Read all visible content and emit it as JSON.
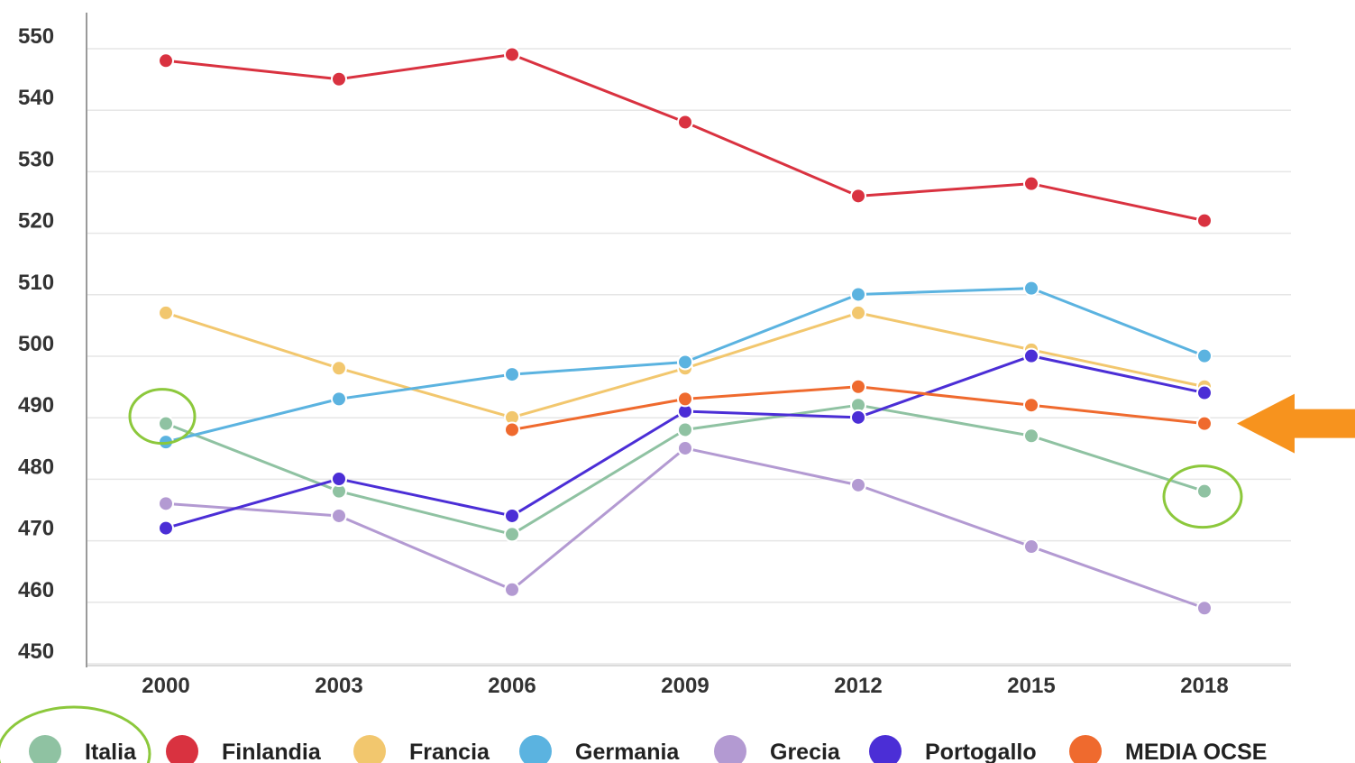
{
  "chart_data": {
    "type": "line",
    "title": "",
    "xlabel": "",
    "ylabel": "",
    "x": [
      "2000",
      "2003",
      "2006",
      "2009",
      "2012",
      "2015",
      "2018"
    ],
    "ylim": [
      450,
      550
    ],
    "yticks": [
      550,
      540,
      530,
      520,
      510,
      500,
      490,
      480,
      470,
      460,
      450
    ],
    "grid": true,
    "legend_position": "bottom",
    "series": [
      {
        "name": "Italia",
        "color": "#8fc2a2",
        "values": [
          487,
          476,
          469,
          486,
          490,
          485,
          476
        ]
      },
      {
        "name": "Finlandia",
        "color": "#d93240",
        "values": [
          546,
          543,
          547,
          536,
          524,
          526,
          520
        ]
      },
      {
        "name": "Francia",
        "color": "#f2c76e",
        "values": [
          505,
          496,
          488,
          496,
          505,
          499,
          493
        ]
      },
      {
        "name": "Germania",
        "color": "#5bb3e0",
        "values": [
          484,
          491,
          495,
          497,
          508,
          509,
          498
        ]
      },
      {
        "name": "Grecia",
        "color": "#b39ad2",
        "values": [
          474,
          472,
          460,
          483,
          477,
          467,
          457
        ]
      },
      {
        "name": "Portogallo",
        "color": "#4b2ed6",
        "values": [
          470,
          478,
          472,
          489,
          488,
          498,
          492
        ]
      },
      {
        "name": "MEDIA OCSE",
        "color": "#ef6a2e",
        "values": [
          null,
          null,
          486,
          491,
          493,
          490,
          487
        ]
      }
    ],
    "annotations": [
      {
        "type": "circle",
        "target": "Italia 2000",
        "color": "#8cc83c"
      },
      {
        "type": "circle",
        "target": "Italia 2018",
        "color": "#8cc83c"
      },
      {
        "type": "circle",
        "target": "legend Italia",
        "color": "#8cc83c"
      },
      {
        "type": "arrow",
        "target": "MEDIA OCSE 2018",
        "color": "#f7931e"
      }
    ]
  }
}
